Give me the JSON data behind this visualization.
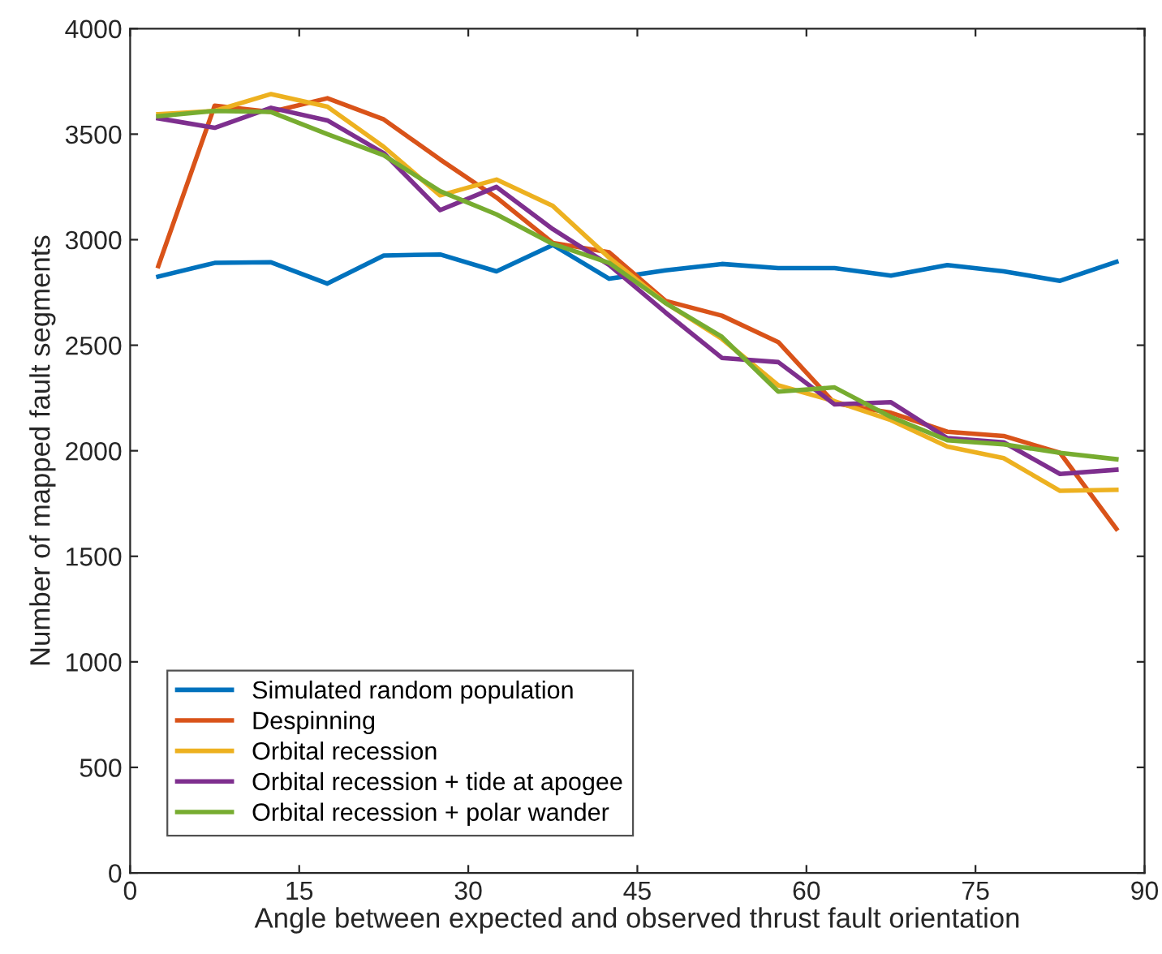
{
  "chart_data": {
    "type": "line",
    "xlabel": "Angle between expected and observed thrust fault orientation",
    "ylabel": "Number of mapped fault segments",
    "x": [
      2.5,
      7.5,
      12.5,
      17.5,
      22.5,
      27.5,
      32.5,
      37.5,
      42.5,
      47.5,
      52.5,
      57.5,
      62.5,
      67.5,
      72.5,
      77.5,
      82.5,
      87.5
    ],
    "xlim": [
      0,
      90
    ],
    "xticks": [
      0,
      15,
      30,
      45,
      60,
      75,
      90
    ],
    "ylim": [
      0,
      4000
    ],
    "yticks": [
      0,
      500,
      1000,
      1500,
      2000,
      2500,
      3000,
      3500,
      4000
    ],
    "grid": false,
    "legend": "bottom left",
    "marker": "none",
    "line_style": "solid",
    "series": [
      {
        "name": "Simulated random population",
        "color": "#0072bd",
        "values": [
          2825,
          2890,
          2893,
          2792,
          2925,
          2930,
          2850,
          2975,
          2815,
          2855,
          2885,
          2865,
          2865,
          2830,
          2880,
          2850,
          2805,
          2895
        ]
      },
      {
        "name": "Despinning",
        "color": "#d95319",
        "values": [
          2875,
          3635,
          3605,
          3670,
          3570,
          3380,
          3200,
          2985,
          2940,
          2710,
          2640,
          2515,
          2225,
          2180,
          2090,
          2070,
          1990,
          1630
        ]
      },
      {
        "name": "Orbital recession",
        "color": "#edb120",
        "values": [
          3595,
          3610,
          3690,
          3630,
          3440,
          3210,
          3285,
          3160,
          2915,
          2700,
          2530,
          2310,
          2235,
          2145,
          2020,
          1965,
          1810,
          1815
        ]
      },
      {
        "name": "Orbital recession + tide at apogee",
        "color": "#7e2f8e",
        "values": [
          3575,
          3530,
          3625,
          3565,
          3410,
          3140,
          3250,
          3050,
          2880,
          2655,
          2440,
          2420,
          2220,
          2230,
          2060,
          2040,
          1890,
          1910
        ]
      },
      {
        "name": "Orbital recession + polar wander",
        "color": "#77ac30",
        "values": [
          3585,
          3610,
          3605,
          3500,
          3400,
          3230,
          3120,
          2980,
          2890,
          2700,
          2540,
          2280,
          2300,
          2160,
          2050,
          2030,
          1990,
          1960
        ]
      }
    ]
  }
}
